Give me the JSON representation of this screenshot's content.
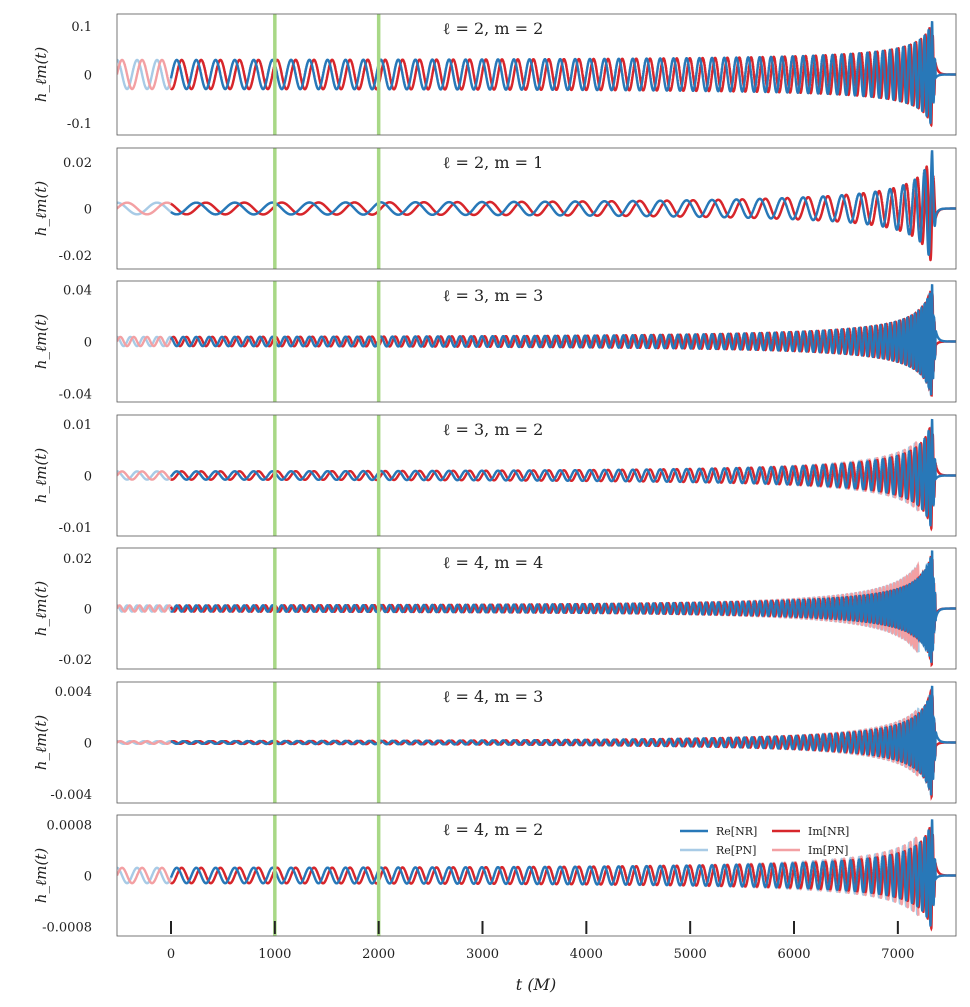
{
  "chart_data": {
    "type": "line",
    "xlabel": "t (M)",
    "xlim": [
      -520,
      7560
    ],
    "x_ticks": [
      0,
      1000,
      2000,
      3000,
      4000,
      5000,
      6000,
      7000
    ],
    "x_tick_labels": [
      "0",
      "1000",
      "2000",
      "3000",
      "4000",
      "5000",
      "6000",
      "7000"
    ],
    "vertical_markers": [
      1000,
      2000
    ],
    "merger_time": 7330,
    "legend": [
      {
        "name": "Re[NR]",
        "color": "#2878b8"
      },
      {
        "name": "Im[NR]",
        "color": "#d7262b"
      },
      {
        "name": "Re[PN]",
        "color": "#a8cbe6"
      },
      {
        "name": "Im[PN]",
        "color": "#f3a0a3"
      }
    ],
    "legend_items": [
      "Re[NR]",
      "Im[NR]",
      "Re[PN]",
      "Im[PN]"
    ],
    "panels": [
      {
        "title": "ℓ = 2, m = 2",
        "ylabel": "h_ℓm(t)",
        "ylim": [
          -0.125,
          0.125
        ],
        "yticks": [
          0.1,
          0,
          -0.1
        ],
        "ytick_labels": [
          "0.1",
          "0",
          "-0.1"
        ],
        "amp_start": 0.03,
        "amp_peak": 0.11,
        "cycles": 62,
        "pn_growth": 1.0
      },
      {
        "title": "ℓ = 2, m = 1",
        "ylabel": "h_ℓm(t)",
        "ylim": [
          -0.026,
          0.026
        ],
        "yticks": [
          0.02,
          0,
          -0.02
        ],
        "ytick_labels": [
          "0.02",
          "0",
          "-0.02"
        ],
        "amp_start": 0.0025,
        "amp_peak": 0.025,
        "cycles": 31,
        "pn_growth": 1.0
      },
      {
        "title": "ℓ = 3, m = 3",
        "ylabel": "h_ℓm(t)",
        "ylim": [
          -0.0465,
          0.0465
        ],
        "yticks": [
          0.04,
          0,
          -0.04
        ],
        "ytick_labels": [
          "0.04",
          "0",
          "-0.04"
        ],
        "amp_start": 0.0035,
        "amp_peak": 0.044,
        "cycles": 93,
        "pn_growth": 1.0
      },
      {
        "title": "ℓ = 3, m = 2",
        "ylabel": "h_ℓm(t)",
        "ylim": [
          -0.0118,
          0.0118
        ],
        "yticks": [
          0.01,
          0,
          -0.01
        ],
        "ytick_labels": [
          "0.01",
          "0",
          "-0.01"
        ],
        "amp_start": 0.0008,
        "amp_peak": 0.011,
        "cycles": 62,
        "pn_growth": 1.2
      },
      {
        "title": "ℓ = 4, m = 4",
        "ylabel": "h_ℓm(t)",
        "ylim": [
          -0.024,
          0.024
        ],
        "yticks": [
          0.02,
          0,
          -0.02
        ],
        "ytick_labels": [
          "0.02",
          "0",
          "-0.02"
        ],
        "amp_start": 0.0012,
        "amp_peak": 0.023,
        "cycles": 124,
        "pn_growth": 1.5
      },
      {
        "title": "ℓ = 4, m = 3",
        "ylabel": "h_ℓm(t)",
        "ylim": [
          -0.0047,
          0.0047
        ],
        "yticks": [
          0.004,
          0,
          -0.004
        ],
        "ytick_labels": [
          "0.004",
          "0",
          "-0.004"
        ],
        "amp_start": 0.0001,
        "amp_peak": 0.0044,
        "cycles": 93,
        "pn_growth": 1.2
      },
      {
        "title": "ℓ = 4, m = 2",
        "ylabel": "h_ℓm(t)",
        "ylim": [
          -0.00095,
          0.00095
        ],
        "yticks": [
          0.0008,
          0,
          -0.0008
        ],
        "ytick_labels": [
          "0.0008",
          "0",
          "-0.0008"
        ],
        "amp_start": 0.00012,
        "amp_peak": 0.00088,
        "cycles": 62,
        "pn_growth": 1.3
      }
    ]
  }
}
